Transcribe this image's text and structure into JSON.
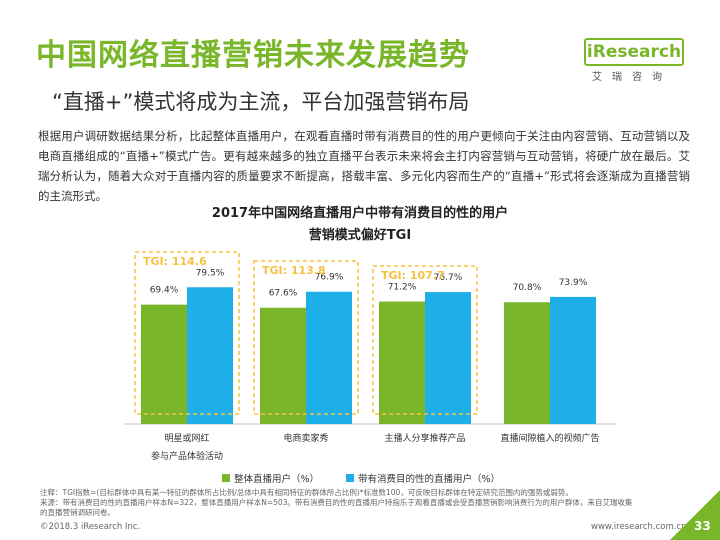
{
  "header": {
    "title": "中国网络直播营销未来发展趋势",
    "subtitle": "“直播+”模式将成为主流，平台加强营销布局",
    "logo_text": "iResearch",
    "logo_sub": "艾瑞咨询"
  },
  "body_text": "根据用户调研数据结果分析，比起整体直播用户，在观看直播时带有消费目的性的用户更倾向于关注由内容营销、互动营销以及电商直播组成的“直播+”模式广告。更有越来越多的独立直播平台表示未来将会主打内容营销与互动营销，将硬广放在最后。艾瑞分析认为，随着大众对于直播内容的质量要求不断提高，搭载丰富、多元化内容而生产的“直播+”形式将会逐渐成为直播营销的主流形式。",
  "chart_data": {
    "type": "bar",
    "title_line1": "2017年中国网络直播用户中带有消费目的性的用户",
    "title_line2": "营销模式偏好TGI",
    "categories": [
      "明星或网红参与产品体验活动",
      "电商卖家秀",
      "主播人分享推荐产品",
      "直播间隙植入的视频广告"
    ],
    "category_lines": [
      [
        "明星或网红",
        "参与产品体验活动"
      ],
      [
        "电商卖家秀"
      ],
      [
        "主播人分享推荐产品"
      ],
      [
        "直播间隙植入的视频广告"
      ]
    ],
    "series": [
      {
        "name": "整体直播用户（%）",
        "values": [
          69.4,
          67.6,
          71.2,
          70.8
        ],
        "labels": [
          "69.4%",
          "67.6%",
          "71.2%",
          "70.8%"
        ],
        "color": "#7ab62a"
      },
      {
        "name": "带有消费目的性的直播用户（%）",
        "values": [
          79.5,
          76.9,
          76.7,
          73.9
        ],
        "labels": [
          "79.5%",
          "76.9%",
          "76.7%",
          "73.9%"
        ],
        "color": "#1eaee8"
      }
    ],
    "tgi_labels": [
      "TGI: 114.6",
      "TGI: 113.8",
      "TGI: 107.7",
      ""
    ],
    "tgi_color": "#f5c242",
    "ylim": [
      0,
      100
    ],
    "legend_position": "bottom"
  },
  "footnote_lines": [
    "注释：TGI指数=(目标群体中具有某一特征的群体所占比例/总体中具有相同特征的群体所占比例)*标准数100，可反映目标群体在特定研究范围内的强势或弱势。",
    "来源：带有消费目的性的直播用户样本N=322，整体直播用户样本N=503。带有消费目的性的直播用户特指乐于观看直播或会受直播营销影响消费行为的用户群体，来自艾瑞收集",
    "的直播营销调研问卷。"
  ],
  "footer": {
    "copyright": "©2018.3 iResearch Inc.",
    "website": "www.iresearch.com.cn",
    "page_number": "33"
  }
}
